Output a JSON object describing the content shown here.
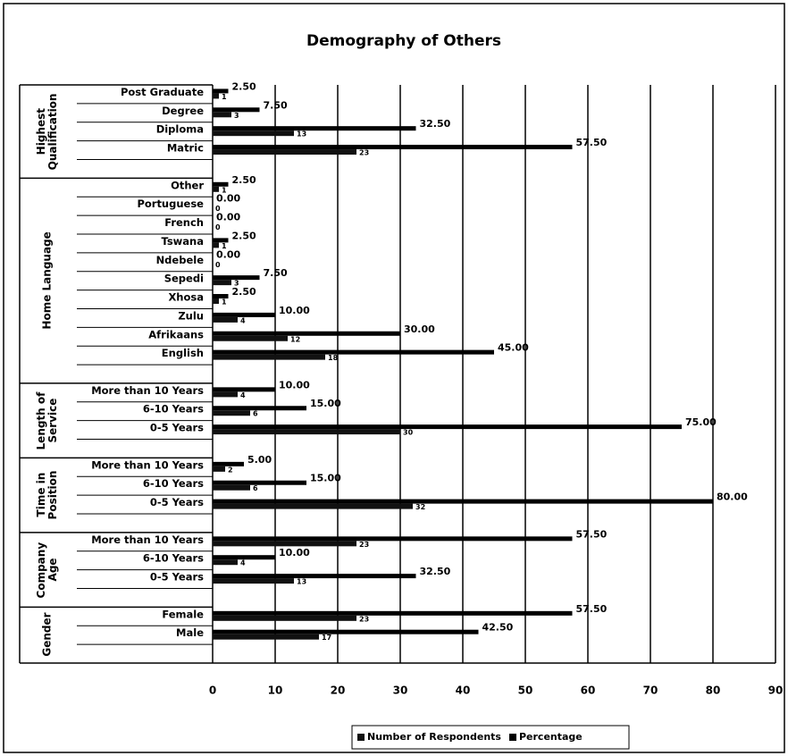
{
  "chart_data": {
    "type": "bar",
    "orientation": "horizontal",
    "title": "Demography of Others",
    "groups": [
      {
        "label": "Highest Qualification",
        "categories": [
          "Post Graduate",
          "Degree",
          "Diploma",
          "Matric"
        ]
      },
      {
        "label": "Home Language",
        "categories": [
          "Other",
          "Portuguese",
          "French",
          "Tswana",
          "Ndebele",
          "Sepedi",
          "Xhosa",
          "Zulu",
          "Afrikaans",
          "English"
        ]
      },
      {
        "label": "Length of Service",
        "categories": [
          "More than 10 Years",
          "6-10 Years",
          "0-5 Years"
        ]
      },
      {
        "label": "Time in Position",
        "categories": [
          "More than 10 Years",
          "6-10 Years",
          "0-5 Years"
        ]
      },
      {
        "label": "Company Age",
        "categories": [
          "More than 10 Years",
          "6-10 Years",
          "0-5 Years"
        ]
      },
      {
        "label": "Gender",
        "categories": [
          "Female",
          "Male"
        ]
      }
    ],
    "series": [
      {
        "name": "Number of Respondents",
        "color": "#111111",
        "values": [
          1,
          3,
          13,
          23,
          1,
          0,
          0,
          1,
          0,
          3,
          1,
          4,
          12,
          18,
          4,
          6,
          30,
          2,
          6,
          32,
          23,
          4,
          13,
          23,
          17
        ]
      },
      {
        "name": "Percentage",
        "color": "#000000",
        "values": [
          2.5,
          7.5,
          32.5,
          57.5,
          2.5,
          0,
          0,
          2.5,
          0,
          7.5,
          2.5,
          10,
          30,
          45,
          10,
          15,
          75,
          5,
          15,
          80,
          57.5,
          10,
          32.5,
          57.5,
          42.5
        ],
        "value_labels": [
          "2.50",
          "7.50",
          "32.50",
          "57.50",
          "2.50",
          "0.00",
          "0.00",
          "2.50",
          "0.00",
          "7.50",
          "2.50",
          "10.00",
          "30.00",
          "45.00",
          "10.00",
          "15.00",
          "75.00",
          "5.00",
          "15.00",
          "80.00",
          "57.50",
          "10.00",
          "32.50",
          "57.50",
          "42.50"
        ]
      }
    ],
    "xlim": [
      0,
      90
    ],
    "xticks": [
      0,
      10,
      20,
      30,
      40,
      50,
      60,
      70,
      80,
      90
    ],
    "grid": true,
    "legend": "bottom"
  }
}
